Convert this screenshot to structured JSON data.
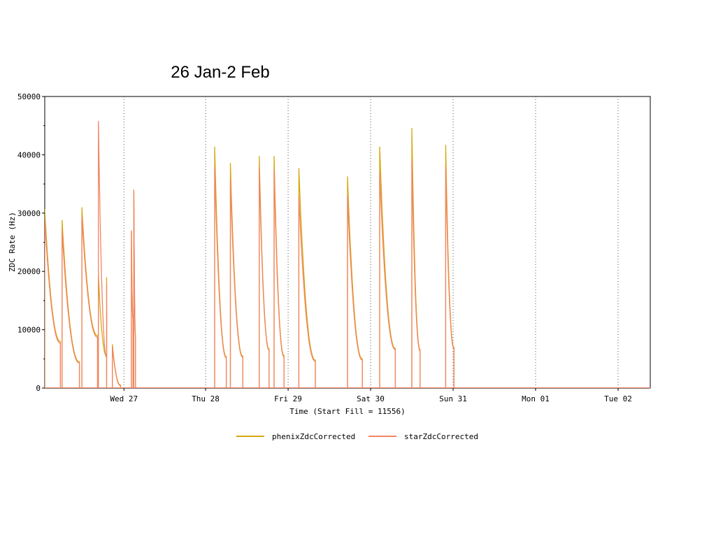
{
  "slide": {
    "title": "26 Jan-2 Feb"
  },
  "colors": {
    "phenix": "#D4A90E",
    "star": "#F28565",
    "axis": "#000000",
    "grid": "#555555"
  },
  "chart_data": {
    "type": "line",
    "title": "26 Jan-2 Feb",
    "xlabel": "Time (Start Fill = 11556)",
    "ylabel": "ZDC Rate (Hz)",
    "ylim": [
      0,
      50000
    ],
    "xlim": [
      0,
      7.34
    ],
    "x_unit": "days after the left edge of the plot",
    "y_ticks": [
      0,
      10000,
      20000,
      30000,
      40000,
      50000
    ],
    "y_tick_labels": [
      "0",
      "10000",
      "20000",
      "30000",
      "40000",
      "50000"
    ],
    "x_ticks": [
      0.96,
      1.95,
      2.95,
      3.95,
      4.95,
      5.95,
      6.95
    ],
    "x_tick_labels": [
      "Wed 27",
      "Thu 28",
      "Fri 29",
      "Sat 30",
      "Sun 31",
      "Mon 01",
      "Tue 02"
    ],
    "vertical_gridlines": "dotted at each day boundary",
    "legend_position": "bottom-center",
    "fills": [
      {
        "start": 0.0,
        "end": 0.19,
        "phenix_peak": 30700,
        "star_peak": 29000,
        "phenix_end": 8000,
        "star_end": 7700
      },
      {
        "start": 0.21,
        "end": 0.42,
        "phenix_peak": 28800,
        "star_peak": 27000,
        "phenix_end": 4500,
        "star_end": 4300
      },
      {
        "start": 0.45,
        "end": 0.64,
        "phenix_peak": 31000,
        "star_peak": 29500,
        "phenix_end": 9000,
        "star_end": 8700
      },
      {
        "start": 0.65,
        "end": 0.75,
        "phenix_peak": 19500,
        "star_peak": 45800,
        "phenix_end": 5500,
        "star_end": 5300
      },
      {
        "start": 0.75,
        "end": 0.75,
        "phenix_peak": 19000,
        "star_peak": 18000,
        "phenix_end": 12000,
        "star_end": 11500
      },
      {
        "start": 0.82,
        "end": 0.92,
        "phenix_peak": 7500,
        "star_peak": 7200,
        "phenix_end": 500,
        "star_end": 400
      },
      {
        "start": 1.05,
        "end": 1.07,
        "phenix_peak": 27000,
        "star_peak": 27000,
        "phenix_end": 12000,
        "star_end": 12000
      },
      {
        "start": 1.08,
        "end": 1.1,
        "phenix_peak": 34000,
        "star_peak": 34000,
        "phenix_end": 9000,
        "star_end": 9000
      },
      {
        "start": 2.06,
        "end": 2.2,
        "phenix_peak": 41400,
        "star_peak": 38000,
        "phenix_end": 5400,
        "star_end": 5200
      },
      {
        "start": 2.25,
        "end": 2.4,
        "phenix_peak": 38600,
        "star_peak": 36000,
        "phenix_end": 5500,
        "star_end": 5300
      },
      {
        "start": 2.6,
        "end": 2.72,
        "phenix_peak": 39800,
        "star_peak": 38000,
        "phenix_end": 6700,
        "star_end": 6500
      },
      {
        "start": 2.78,
        "end": 2.9,
        "phenix_peak": 39800,
        "star_peak": 37500,
        "phenix_end": 5600,
        "star_end": 5400
      },
      {
        "start": 3.08,
        "end": 3.28,
        "phenix_peak": 37700,
        "star_peak": 33000,
        "phenix_end": 4800,
        "star_end": 4600
      },
      {
        "start": 3.67,
        "end": 3.85,
        "phenix_peak": 36300,
        "star_peak": 33000,
        "phenix_end": 5000,
        "star_end": 4800
      },
      {
        "start": 4.06,
        "end": 4.25,
        "phenix_peak": 41400,
        "star_peak": 37000,
        "phenix_end": 6800,
        "star_end": 6600
      },
      {
        "start": 4.45,
        "end": 4.55,
        "phenix_peak": 44600,
        "star_peak": 39000,
        "phenix_end": 6600,
        "star_end": 6400
      },
      {
        "start": 4.86,
        "end": 4.96,
        "phenix_peak": 41700,
        "star_peak": 38000,
        "phenix_end": 7000,
        "star_end": 6800
      }
    ],
    "series": [
      {
        "name": "phenixZdcCorrected"
      },
      {
        "name": "starZdcCorrected"
      }
    ]
  }
}
